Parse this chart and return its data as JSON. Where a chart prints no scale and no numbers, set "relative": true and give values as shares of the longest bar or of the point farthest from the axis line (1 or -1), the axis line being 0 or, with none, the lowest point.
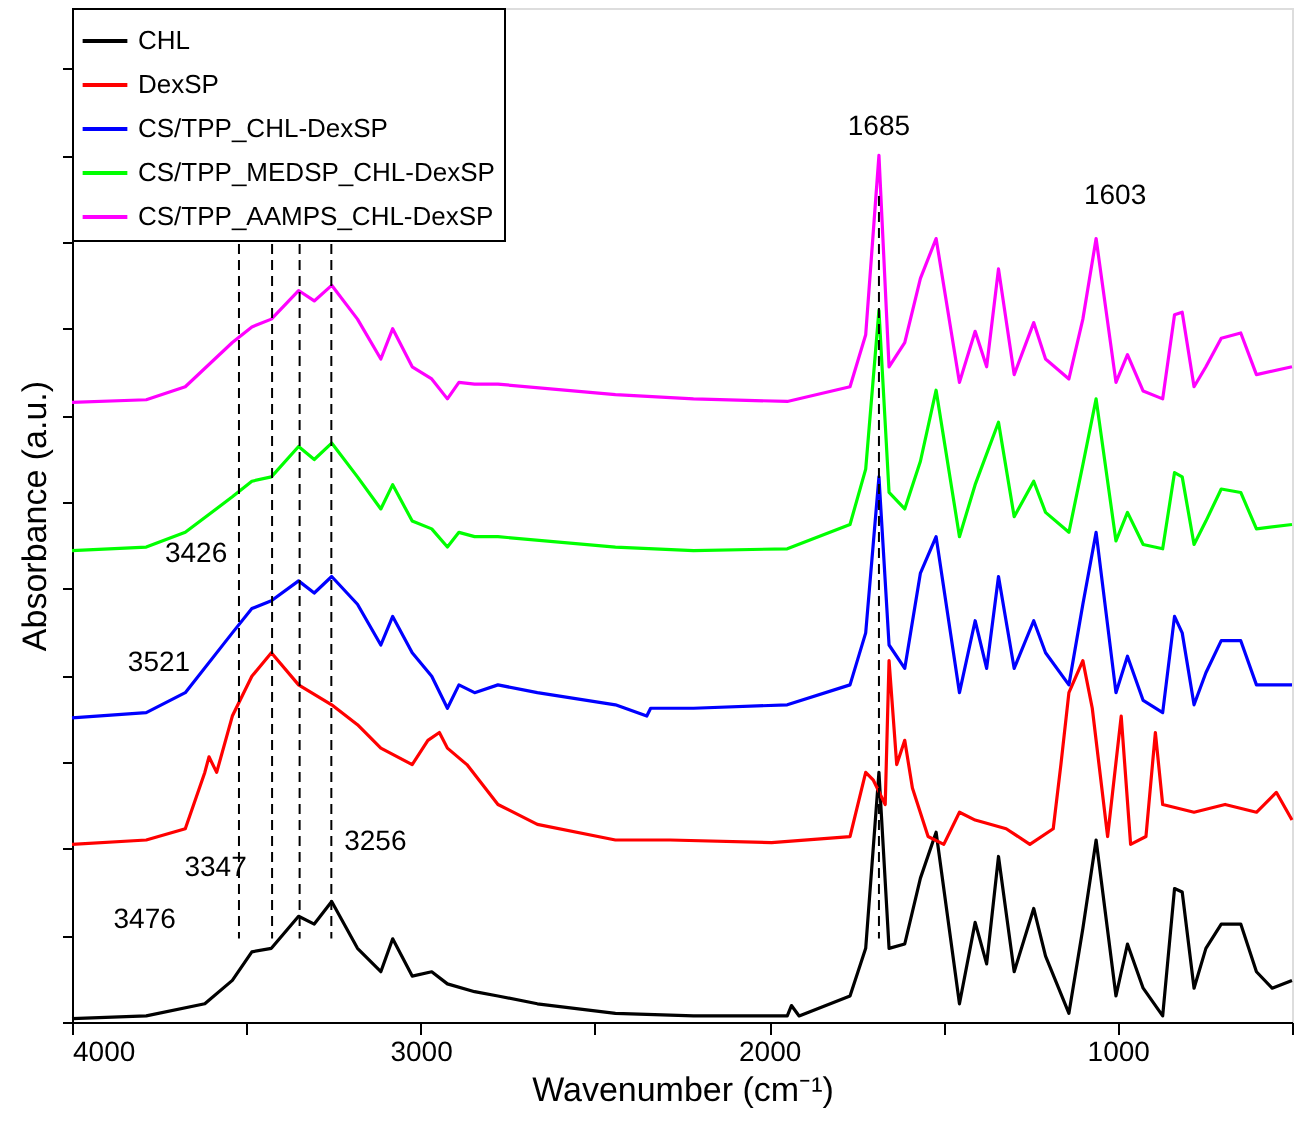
{
  "chart_data": {
    "type": "line",
    "relative": true,
    "xlabel": "Wavenumber (cm⁻¹)",
    "ylabel": "Absorbance (a.u.)",
    "xlim": [
      4000,
      500
    ],
    "xticks": [
      4000,
      {
        "value": 3500,
        "label": null
      },
      3000,
      {
        "value": 2500,
        "label": null
      },
      2000,
      {
        "value": 1500,
        "label": null
      },
      1000,
      {
        "value": 500,
        "label": null
      }
    ],
    "grid": false,
    "legend": "top left",
    "tick_labels": "x",
    "series": [
      {
        "name": "CHL",
        "color": "#000000",
        "x": [
          4000,
          3787,
          3619,
          3540,
          3484,
          3428,
          3350,
          3305,
          3255,
          3181,
          3114,
          3080,
          3024,
          2968,
          2923,
          2845,
          2778,
          2665,
          2441,
          2217,
          1948,
          1936,
          1914,
          1768,
          1723,
          1685,
          1656,
          1611,
          1566,
          1521,
          1454,
          1409,
          1376,
          1342,
          1297,
          1241,
          1207,
          1140,
          1100,
          1062,
          1005,
          972,
          927,
          871,
          837,
          815,
          781,
          747,
          703,
          647,
          602,
          557,
          500
        ],
        "values": [
          0.004,
          0.007,
          0.021,
          0.048,
          0.081,
          0.085,
          0.122,
          0.113,
          0.139,
          0.085,
          0.058,
          0.096,
          0.053,
          0.058,
          0.044,
          0.035,
          0.03,
          0.021,
          0.01,
          0.007,
          0.007,
          0.019,
          0.007,
          0.03,
          0.085,
          0.288,
          0.085,
          0.09,
          0.166,
          0.219,
          0.021,
          0.115,
          0.067,
          0.191,
          0.058,
          0.131,
          0.076,
          0.01,
          0.108,
          0.21,
          0.03,
          0.09,
          0.039,
          0.007,
          0.154,
          0.15,
          0.039,
          0.085,
          0.113,
          0.113,
          0.058,
          0.039,
          0.048
        ]
      },
      {
        "name": "DexSP",
        "color": "#ff0000",
        "x": [
          4000,
          3787,
          3675,
          3619,
          3607,
          3585,
          3540,
          3484,
          3428,
          3350,
          3255,
          3181,
          3114,
          3024,
          2979,
          2946,
          2923,
          2867,
          2778,
          2665,
          2441,
          2284,
          1993,
          1768,
          1723,
          1701,
          1667,
          1656,
          1634,
          1611,
          1589,
          1544,
          1499,
          1454,
          1409,
          1320,
          1252,
          1185,
          1163,
          1140,
          1100,
          1073,
          1029,
          990,
          963,
          919,
          892,
          871,
          781,
          692,
          602,
          545,
          500
        ],
        "values": [
          0.205,
          0.21,
          0.223,
          0.288,
          0.306,
          0.288,
          0.353,
          0.399,
          0.426,
          0.389,
          0.366,
          0.343,
          0.316,
          0.297,
          0.325,
          0.334,
          0.316,
          0.297,
          0.251,
          0.228,
          0.21,
          0.21,
          0.207,
          0.214,
          0.288,
          0.279,
          0.251,
          0.417,
          0.297,
          0.325,
          0.27,
          0.214,
          0.205,
          0.242,
          0.233,
          0.223,
          0.205,
          0.223,
          0.297,
          0.38,
          0.417,
          0.362,
          0.214,
          0.353,
          0.205,
          0.214,
          0.334,
          0.251,
          0.242,
          0.251,
          0.242,
          0.265,
          0.233
        ]
      },
      {
        "name": "CS/TPP_CHL-DexSP",
        "color": "#0000ff",
        "x": [
          4000,
          3787,
          3675,
          3540,
          3484,
          3428,
          3350,
          3305,
          3255,
          3181,
          3114,
          3080,
          3024,
          2968,
          2923,
          2890,
          2845,
          2778,
          2665,
          2441,
          2351,
          2340,
          2217,
          1948,
          1768,
          1723,
          1685,
          1656,
          1611,
          1566,
          1521,
          1454,
          1409,
          1376,
          1342,
          1297,
          1241,
          1207,
          1140,
          1100,
          1062,
          1005,
          972,
          927,
          871,
          837,
          815,
          781,
          747,
          703,
          647,
          602,
          500
        ],
        "values": [
          0.351,
          0.357,
          0.38,
          0.449,
          0.477,
          0.486,
          0.509,
          0.495,
          0.514,
          0.482,
          0.435,
          0.468,
          0.426,
          0.399,
          0.362,
          0.389,
          0.38,
          0.389,
          0.38,
          0.366,
          0.353,
          0.362,
          0.362,
          0.366,
          0.389,
          0.449,
          0.629,
          0.435,
          0.408,
          0.518,
          0.56,
          0.38,
          0.463,
          0.408,
          0.514,
          0.408,
          0.463,
          0.426,
          0.389,
          0.482,
          0.565,
          0.38,
          0.422,
          0.371,
          0.357,
          0.468,
          0.449,
          0.366,
          0.403,
          0.44,
          0.44,
          0.389,
          0.389
        ]
      },
      {
        "name": "CS/TPP_MEDSP_CHL-DexSP",
        "color": "#00ff00",
        "x": [
          4000,
          3787,
          3675,
          3540,
          3484,
          3428,
          3350,
          3305,
          3255,
          3181,
          3114,
          3080,
          3024,
          2968,
          2923,
          2890,
          2845,
          2778,
          2441,
          2217,
          1948,
          1768,
          1723,
          1685,
          1656,
          1611,
          1566,
          1521,
          1454,
          1409,
          1342,
          1297,
          1241,
          1207,
          1140,
          1100,
          1062,
          1005,
          972,
          927,
          871,
          837,
          815,
          781,
          747,
          703,
          647,
          602,
          500
        ],
        "values": [
          0.544,
          0.548,
          0.565,
          0.606,
          0.624,
          0.629,
          0.664,
          0.649,
          0.668,
          0.629,
          0.592,
          0.62,
          0.578,
          0.569,
          0.548,
          0.565,
          0.56,
          0.56,
          0.548,
          0.544,
          0.546,
          0.574,
          0.638,
          0.821,
          0.611,
          0.592,
          0.647,
          0.729,
          0.56,
          0.62,
          0.692,
          0.583,
          0.624,
          0.588,
          0.565,
          0.643,
          0.719,
          0.555,
          0.588,
          0.551,
          0.546,
          0.634,
          0.629,
          0.551,
          0.578,
          0.615,
          0.611,
          0.569,
          0.574
        ]
      },
      {
        "name": "CS/TPP_AAMPS_CHL-DexSP",
        "color": "#ff00ff",
        "x": [
          4000,
          3787,
          3675,
          3540,
          3484,
          3428,
          3350,
          3305,
          3255,
          3181,
          3114,
          3080,
          3024,
          2968,
          2923,
          2890,
          2845,
          2778,
          2441,
          2217,
          1948,
          1768,
          1723,
          1685,
          1656,
          1611,
          1566,
          1521,
          1454,
          1409,
          1376,
          1342,
          1297,
          1241,
          1207,
          1140,
          1100,
          1062,
          1005,
          972,
          927,
          871,
          837,
          815,
          781,
          747,
          703,
          647,
          602,
          500
        ],
        "values": [
          0.715,
          0.718,
          0.733,
          0.784,
          0.802,
          0.811,
          0.844,
          0.832,
          0.85,
          0.811,
          0.765,
          0.8,
          0.756,
          0.742,
          0.719,
          0.738,
          0.736,
          0.736,
          0.724,
          0.719,
          0.716,
          0.733,
          0.793,
          1.0,
          0.756,
          0.784,
          0.858,
          0.904,
          0.738,
          0.797,
          0.756,
          0.869,
          0.747,
          0.807,
          0.765,
          0.742,
          0.811,
          0.904,
          0.738,
          0.77,
          0.728,
          0.719,
          0.816,
          0.819,
          0.733,
          0.756,
          0.789,
          0.795,
          0.747,
          0.756
        ]
      }
    ],
    "ref_lines": [
      {
        "axis": "x",
        "value": 3521,
        "line_style": "dashed",
        "color": "#000000"
      },
      {
        "axis": "x",
        "value": 3426,
        "line_style": "dashed",
        "color": "#000000"
      },
      {
        "axis": "x",
        "value": 3347,
        "line_style": "dashed",
        "color": "#000000"
      },
      {
        "axis": "x",
        "value": 3256,
        "line_style": "dashed",
        "color": "#000000"
      },
      {
        "axis": "x",
        "value": 1685,
        "line_style": "dashed",
        "color": "#000000"
      }
    ],
    "annotations": [
      {
        "text": "3426",
        "x": 3426,
        "y": 0.48
      },
      {
        "text": "3521",
        "x": 3521,
        "y": 0.35
      },
      {
        "text": "3476",
        "x": 3476,
        "y": 0.085
      },
      {
        "text": "3347",
        "x": 3347,
        "y": 0.122
      },
      {
        "text": "3256",
        "x": 3256,
        "y": 0.139
      },
      {
        "text": "1685",
        "x": 1685,
        "y": 1.0
      },
      "1603"
    ]
  }
}
